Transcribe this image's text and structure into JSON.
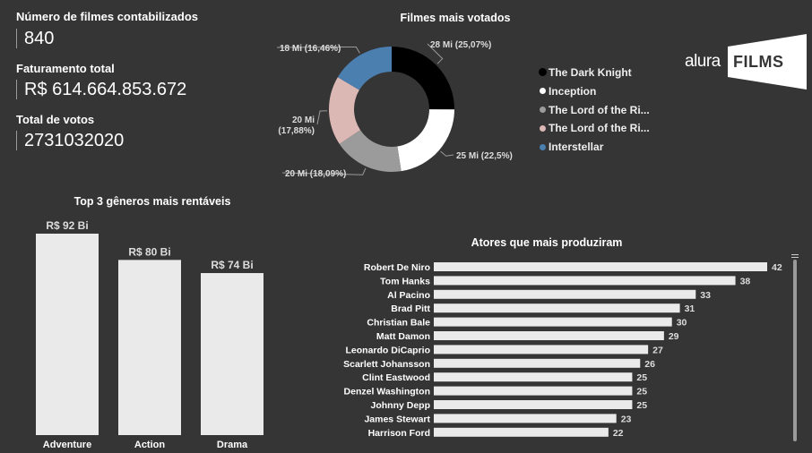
{
  "kpis": [
    {
      "label": "Número de filmes contabilizados",
      "value": "840"
    },
    {
      "label": "Faturamento total",
      "value": "R$ 614.664.853.672"
    },
    {
      "label": "Total de votos",
      "value": "2731032020"
    }
  ],
  "logo": {
    "word": "alura",
    "box_text": "FILMS"
  },
  "colors": {
    "background": "#353535",
    "bar": "#eaeaea",
    "text": "#ffffff"
  },
  "chart_data": [
    {
      "type": "pie",
      "title": "Filmes mais votados",
      "slices": [
        {
          "name": "The Dark Knight",
          "label": "28 Mi (25,07%)",
          "value": 25.07,
          "color": "#000000"
        },
        {
          "name": "Inception",
          "label": "25 Mi (22,5%)",
          "value": 22.5,
          "color": "#ffffff"
        },
        {
          "name": "The Lord of the Ri...",
          "label": "20 Mi (18,09%)",
          "value": 18.09,
          "color": "#9b9b9b"
        },
        {
          "name": "The Lord of the Ri...",
          "label": "20 Mi (17,88%)",
          "label_lines": [
            "20 Mi",
            "(17,88%)"
          ],
          "value": 17.88,
          "color": "#dcb8b4"
        },
        {
          "name": "Interstellar",
          "label": "18 Mi (16,46%)",
          "value": 16.46,
          "color": "#4a7fb0"
        }
      ],
      "legend_position": "right"
    },
    {
      "type": "bar",
      "title": "Top 3 gêneros mais rentáveis",
      "categories": [
        "Adventure",
        "Action",
        "Drama"
      ],
      "values": [
        92,
        80,
        74
      ],
      "data_labels": [
        "R$ 92 Bi",
        "R$ 80 Bi",
        "R$ 74 Bi"
      ],
      "ylim": [
        0,
        92
      ]
    },
    {
      "type": "bar",
      "orientation": "horizontal",
      "title": "Atores que mais produziram",
      "categories": [
        "Robert De Niro",
        "Tom Hanks",
        "Al Pacino",
        "Brad Pitt",
        "Christian Bale",
        "Matt Damon",
        "Leonardo DiCaprio",
        "Scarlett Johansson",
        "Clint Eastwood",
        "Denzel Washington",
        "Johnny Depp",
        "James Stewart",
        "Harrison Ford"
      ],
      "values": [
        42,
        38,
        33,
        31,
        30,
        29,
        27,
        26,
        25,
        25,
        25,
        23,
        22
      ],
      "xlim": [
        0,
        42
      ]
    }
  ]
}
